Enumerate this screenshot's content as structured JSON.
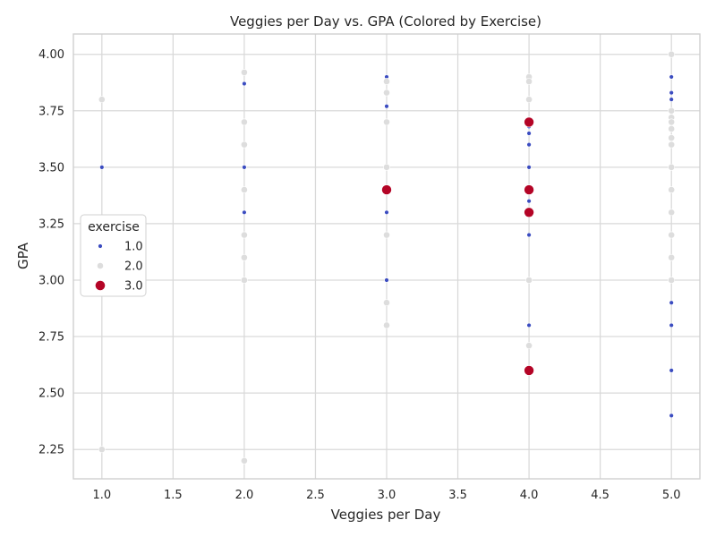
{
  "chart_data": {
    "type": "scatter",
    "title": "Veggies per Day vs. GPA (Colored by Exercise)",
    "xlabel": "Veggies per Day",
    "ylabel": "GPA",
    "xlim": [
      0.8,
      5.2
    ],
    "ylim": [
      2.12,
      4.09
    ],
    "x_ticks": [
      1.0,
      1.5,
      2.0,
      2.5,
      3.0,
      3.5,
      4.0,
      4.5,
      5.0
    ],
    "y_ticks": [
      2.25,
      2.5,
      2.75,
      3.0,
      3.25,
      3.5,
      3.75,
      4.0
    ],
    "x_tick_labels": [
      "1.0",
      "1.5",
      "2.0",
      "2.5",
      "3.0",
      "3.5",
      "4.0",
      "4.5",
      "5.0"
    ],
    "y_tick_labels": [
      "2.25",
      "2.50",
      "2.75",
      "3.00",
      "3.25",
      "3.50",
      "3.75",
      "4.00"
    ],
    "grid": true,
    "legend": {
      "title": "exercise",
      "placement": "center-left"
    },
    "series": [
      {
        "name": "1.0",
        "color": "#3b4cc0",
        "points": [
          [
            1.0,
            3.5
          ],
          [
            2.0,
            3.87
          ],
          [
            2.0,
            3.5
          ],
          [
            2.0,
            3.3
          ],
          [
            3.0,
            3.9
          ],
          [
            3.0,
            3.77
          ],
          [
            3.0,
            3.3
          ],
          [
            3.0,
            3.0
          ],
          [
            4.0,
            3.8
          ],
          [
            4.0,
            3.7
          ],
          [
            4.0,
            3.68
          ],
          [
            4.0,
            3.65
          ],
          [
            4.0,
            3.6
          ],
          [
            4.0,
            3.5
          ],
          [
            4.0,
            3.4
          ],
          [
            4.0,
            3.35
          ],
          [
            4.0,
            3.2
          ],
          [
            4.0,
            2.8
          ],
          [
            5.0,
            4.0
          ],
          [
            5.0,
            3.9
          ],
          [
            5.0,
            3.83
          ],
          [
            5.0,
            3.8
          ],
          [
            5.0,
            3.75
          ],
          [
            5.0,
            3.3
          ],
          [
            5.0,
            2.9
          ],
          [
            5.0,
            2.8
          ],
          [
            5.0,
            2.6
          ],
          [
            5.0,
            2.4
          ]
        ]
      },
      {
        "name": "2.0",
        "color": "#dddddd",
        "points": [
          [
            1.0,
            3.8
          ],
          [
            1.0,
            2.25
          ],
          [
            2.0,
            3.92
          ],
          [
            2.0,
            3.7
          ],
          [
            2.0,
            3.6
          ],
          [
            2.0,
            3.4
          ],
          [
            2.0,
            3.2
          ],
          [
            2.0,
            3.1
          ],
          [
            2.0,
            3.0
          ],
          [
            2.0,
            2.2
          ],
          [
            3.0,
            3.88
          ],
          [
            3.0,
            3.83
          ],
          [
            3.0,
            3.7
          ],
          [
            3.0,
            3.5
          ],
          [
            3.0,
            3.2
          ],
          [
            3.0,
            2.9
          ],
          [
            3.0,
            2.8
          ],
          [
            4.0,
            3.9
          ],
          [
            4.0,
            3.88
          ],
          [
            4.0,
            3.8
          ],
          [
            4.0,
            3.4
          ],
          [
            4.0,
            3.0
          ],
          [
            4.0,
            2.71
          ],
          [
            5.0,
            4.0
          ],
          [
            5.0,
            3.75
          ],
          [
            5.0,
            3.72
          ],
          [
            5.0,
            3.7
          ],
          [
            5.0,
            3.67
          ],
          [
            5.0,
            3.63
          ],
          [
            5.0,
            3.6
          ],
          [
            5.0,
            3.5
          ],
          [
            5.0,
            3.4
          ],
          [
            5.0,
            3.3
          ],
          [
            5.0,
            3.2
          ],
          [
            5.0,
            3.1
          ],
          [
            5.0,
            3.0
          ]
        ]
      },
      {
        "name": "3.0",
        "color": "#b40426",
        "points": [
          [
            3.0,
            3.4
          ],
          [
            4.0,
            3.7
          ],
          [
            4.0,
            3.4
          ],
          [
            4.0,
            3.3
          ],
          [
            4.0,
            2.6
          ]
        ]
      }
    ]
  }
}
